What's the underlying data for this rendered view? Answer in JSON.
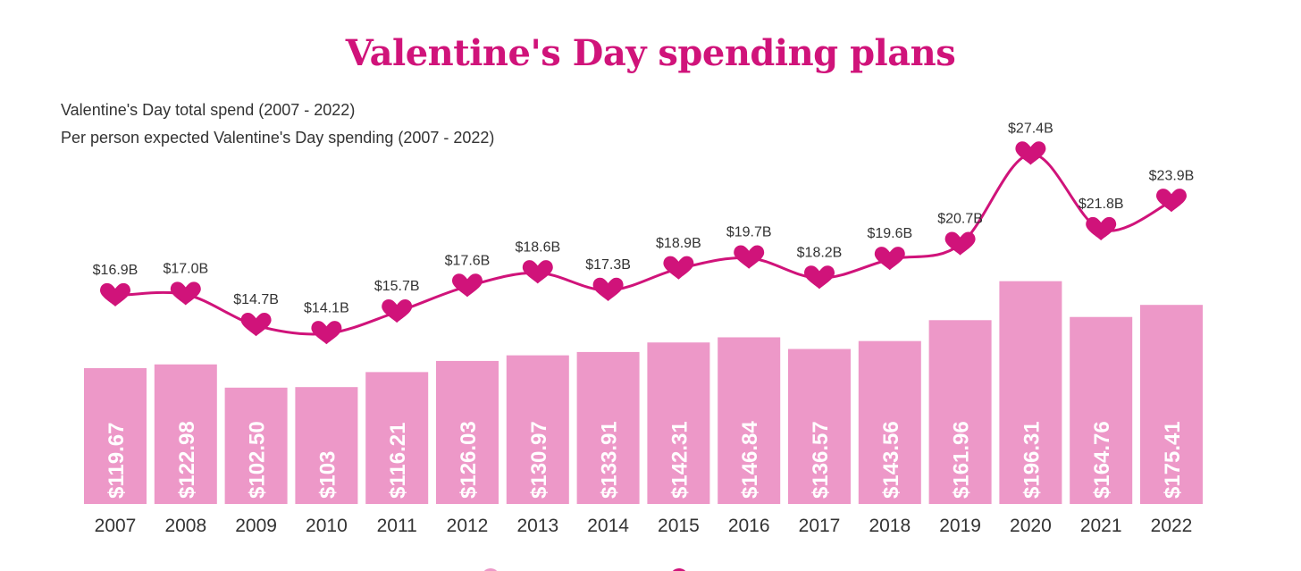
{
  "title": "Valentine's Day spending plans",
  "legend": {
    "total_spend": "Valentine's Day total spend (2007 - 2022)",
    "per_person": "Per person expected Valentine's Day spending (2007 - 2022)"
  },
  "colors": {
    "title": "#d0137a",
    "bar": "#ed98c8",
    "line": "#d0137a",
    "text": "#333333",
    "bar_label": "#ffffff"
  },
  "chart_data": {
    "type": "bar",
    "categories": [
      "2007",
      "2008",
      "2009",
      "2010",
      "2011",
      "2012",
      "2013",
      "2014",
      "2015",
      "2016",
      "2017",
      "2018",
      "2019",
      "2020",
      "2021",
      "2022"
    ],
    "series": [
      {
        "type": "bar",
        "values": [
          119.67,
          122.98,
          102.5,
          103,
          116.21,
          126.03,
          130.97,
          133.91,
          142.31,
          146.84,
          136.57,
          143.56,
          161.96,
          196.31,
          164.76,
          175.41
        ],
        "labels": [
          "$119.67",
          "$122.98",
          "$102.50",
          "$103",
          "$116.21",
          "$126.03",
          "$130.97",
          "$133.91",
          "$142.31",
          "$146.84",
          "$136.57",
          "$143.56",
          "$161.96",
          "$196.31",
          "$164.76",
          "$175.41"
        ]
      },
      {
        "type": "line",
        "marker": "heart",
        "values": [
          16.9,
          17.0,
          14.7,
          14.1,
          15.7,
          17.6,
          18.6,
          17.3,
          18.9,
          19.7,
          18.2,
          19.6,
          20.7,
          27.4,
          21.8,
          23.9
        ],
        "labels": [
          "$16.9B",
          "$17.0B",
          "$14.7B",
          "$14.1B",
          "$15.7B",
          "$17.6B",
          "$18.6B",
          "$17.3B",
          "$18.9B",
          "$19.7B",
          "$18.2B",
          "$19.6B",
          "$20.7B",
          "$27.4B",
          "$21.8B",
          "$23.9B"
        ]
      }
    ],
    "grid": false,
    "legend_placement": "top-left"
  }
}
